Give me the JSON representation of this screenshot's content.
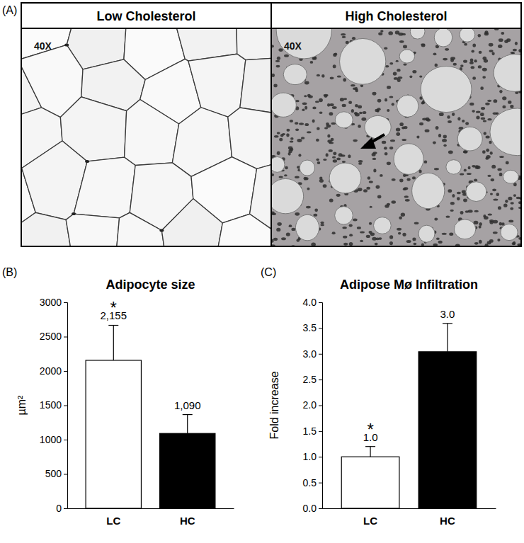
{
  "images": {
    "label": "(A)",
    "panels": [
      {
        "title": "Low Cholesterol",
        "magnification": "40X"
      },
      {
        "title": "High Cholesterol",
        "magnification": "40X"
      }
    ]
  },
  "chart_data": [
    {
      "type": "bar",
      "panel_label": "(B)",
      "title": "Adipocyte size",
      "y_label": "µm²",
      "categories": [
        "LC",
        "HC"
      ],
      "values": [
        2155,
        1090
      ],
      "value_labels": [
        "2,155",
        "1,090"
      ],
      "errors": [
        510,
        275
      ],
      "colors": [
        "#ffffff",
        "#000000"
      ],
      "ylim": [
        0,
        3000
      ],
      "yticks": [
        0,
        500,
        1000,
        1500,
        2000,
        2500,
        3000
      ],
      "grid": false,
      "data_labels": true,
      "annotations": [
        {
          "text": "*",
          "x": "LC"
        }
      ]
    },
    {
      "type": "bar",
      "panel_label": "(C)",
      "title": "Adipose Mø Infiltration",
      "y_label": "Fold increase",
      "categories": [
        "LC",
        "HC"
      ],
      "values": [
        1.0,
        3.04
      ],
      "value_labels": [
        "1.0",
        "3.0"
      ],
      "errors": [
        0.2,
        0.55
      ],
      "colors": [
        "#ffffff",
        "#000000"
      ],
      "ylim": [
        0,
        4
      ],
      "yticks": [
        {
          "value": 0,
          "label": "0.0"
        },
        0.5,
        {
          "value": 1,
          "label": "1.0"
        },
        1.5,
        {
          "value": 2,
          "label": "2.0"
        },
        2.5,
        {
          "value": 3,
          "label": "3.0"
        },
        3.5,
        {
          "value": 4,
          "label": "4.0"
        }
      ],
      "grid": false,
      "data_labels": true,
      "annotations": [
        {
          "text": "*",
          "x": "LC"
        }
      ]
    }
  ]
}
